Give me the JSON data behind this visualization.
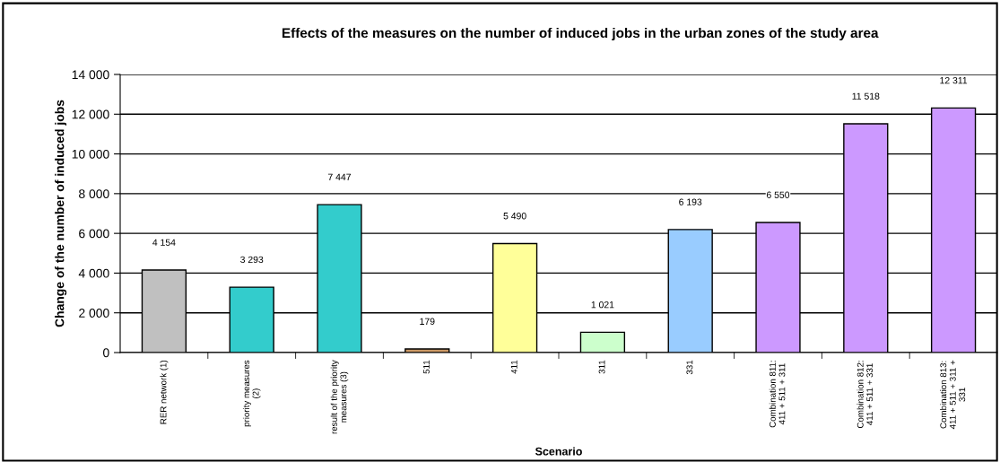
{
  "chart_data": {
    "type": "bar",
    "title": "Effects of the measures on the number of induced jobs in the urban zones of the study area",
    "xlabel": "Scenario",
    "ylabel": "Change of the number of induced jobs",
    "categories": [
      "RER network (1)",
      "priority measures\n(2)",
      "result of the priority\nmeasures (3)",
      "511",
      "411",
      "311",
      "331",
      "Combination 811:\n411 + 511 + 311",
      "Combination 812:\n411 + 511 + 331",
      "Combination 813:\n411 + 511 + 311 +\n331"
    ],
    "values": [
      4154,
      3293,
      7447,
      179,
      5490,
      1021,
      6193,
      6550,
      11518,
      12311
    ],
    "value_labels": [
      "4 154",
      "3 293",
      "7 447",
      "179",
      "5 490",
      "1 021",
      "6 193",
      "6 550",
      "11 518",
      "12 311"
    ],
    "colors": [
      "#c0c0c0",
      "#33cccc",
      "#33cccc",
      "#cc9966",
      "#ffff99",
      "#ccffcc",
      "#99ccff",
      "#cc99ff",
      "#cc99ff",
      "#cc99ff"
    ],
    "ylim": [
      0,
      14000
    ],
    "yticks": [
      {
        "value": 0,
        "label": "0"
      },
      {
        "value": 2000,
        "label": "2 000"
      },
      {
        "value": 4000,
        "label": "4 000"
      },
      {
        "value": 6000,
        "label": "6 000"
      },
      {
        "value": 8000,
        "label": "8 000"
      },
      {
        "value": 10000,
        "label": "10 000"
      },
      {
        "value": 12000,
        "label": "12 000"
      },
      {
        "value": 14000,
        "label": "14 000"
      }
    ],
    "grid": "y",
    "legend": false
  }
}
